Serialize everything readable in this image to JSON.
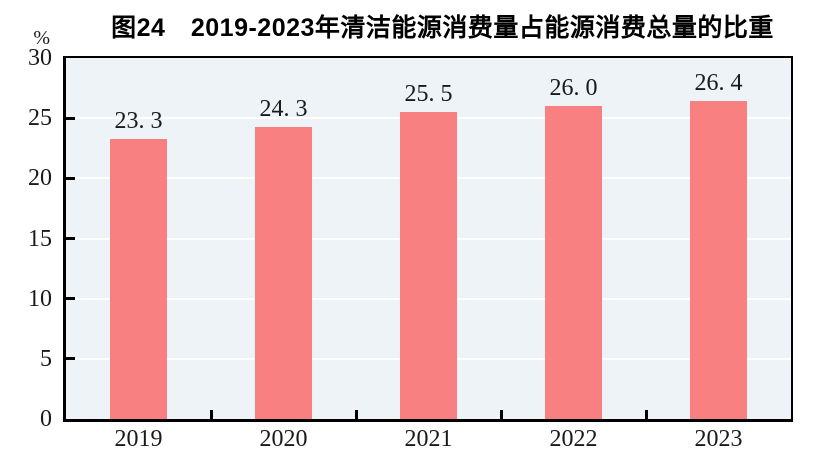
{
  "chart_data": {
    "type": "bar",
    "title": "图24　2019-2023年清洁能源消费量占能源消费总量的比重",
    "categories": [
      "2019",
      "2020",
      "2021",
      "2022",
      "2023"
    ],
    "values": [
      23.3,
      24.3,
      25.5,
      26.0,
      26.4
    ],
    "value_labels": [
      "23. 3",
      "24. 3",
      "25. 5",
      "26. 0",
      "26. 4"
    ],
    "xlabel": "",
    "ylabel": "%",
    "ylim": [
      0,
      30
    ],
    "ytick_interval": 5,
    "ytick_labels": [
      "0",
      "5",
      "10",
      "15",
      "20",
      "25",
      "30"
    ],
    "grid": true,
    "legend": "none",
    "colors": {
      "bar": "#f98080",
      "plot_background": "#edf3f7",
      "gridline": "#ffffff",
      "axis": "#000000",
      "text": "#1a1a1a"
    }
  }
}
